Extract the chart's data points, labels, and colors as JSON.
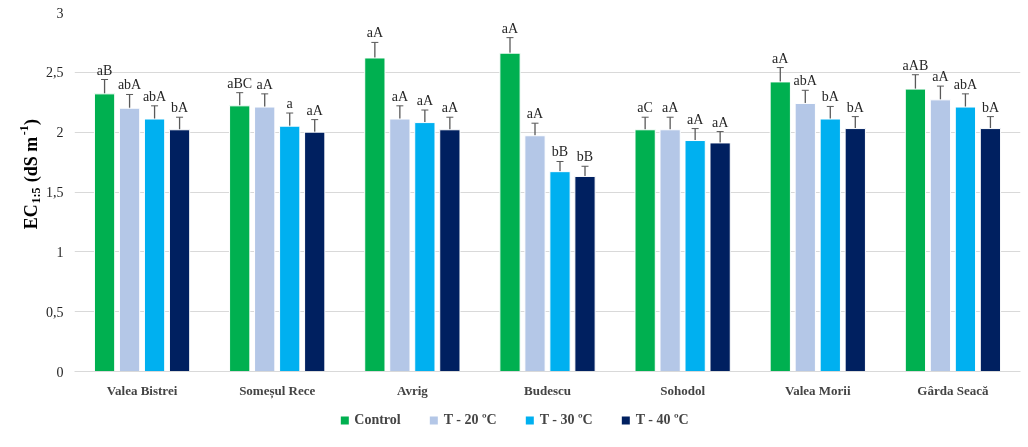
{
  "chart_data": {
    "type": "bar",
    "ylabel": "EC$_{1:5}$ (dS m$^{-1}$)",
    "categories": [
      "Valea Bistrei",
      "Someșul Rece",
      "Avrig",
      "Budescu",
      "Sohodol",
      "Valea Morii",
      "Gârda Seacă"
    ],
    "ylim": [
      0,
      3
    ],
    "yticks": [
      0,
      {
        "value": 0.5,
        "label": "0,5"
      },
      1,
      {
        "value": 1.5,
        "label": "1,5"
      },
      2,
      {
        "value": 2.5,
        "label": "2,5"
      },
      3
    ],
    "grid": "y",
    "legend": "bottom",
    "series": [
      {
        "name": "Control",
        "color": "#00b050",
        "values": [
          2.32,
          2.22,
          2.62,
          2.66,
          2.02,
          2.42,
          2.36
        ],
        "errors": [
          0.12,
          0.11,
          0.13,
          0.13,
          0.105,
          0.12,
          0.12
        ],
        "value_labels": [
          "aB",
          "aBC",
          "aA",
          "aA",
          "aC",
          "aA",
          "aAB"
        ]
      },
      {
        "name": "T - 20 ºC",
        "color": "#b4c7e7",
        "values": [
          2.2,
          2.21,
          2.11,
          1.97,
          2.02,
          2.24,
          2.27
        ],
        "errors": [
          0.115,
          0.11,
          0.11,
          0.105,
          0.105,
          0.11,
          0.115
        ],
        "value_labels": [
          "abA",
          "aA",
          "aA",
          "aA",
          "aA",
          "abA",
          "aA"
        ]
      },
      {
        "name": "T - 30 ºC",
        "color": "#00b0f0",
        "values": [
          2.11,
          2.05,
          2.08,
          1.67,
          1.93,
          2.11,
          2.21
        ],
        "errors": [
          0.11,
          0.11,
          0.105,
          0.085,
          0.1,
          0.105,
          0.11
        ],
        "value_labels": [
          "abA",
          "a",
          "aA",
          "bB",
          "aA",
          "bA",
          "abA"
        ]
      },
      {
        "name": "T - 40 ºC",
        "color": "#002060",
        "values": [
          2.02,
          2.0,
          2.02,
          1.63,
          1.91,
          2.03,
          2.03
        ],
        "errors": [
          0.105,
          0.105,
          0.105,
          0.085,
          0.095,
          0.1,
          0.1
        ],
        "value_labels": [
          "bA",
          "aA",
          "aA",
          "bB",
          "aA",
          "bA",
          "bA"
        ]
      }
    ]
  }
}
